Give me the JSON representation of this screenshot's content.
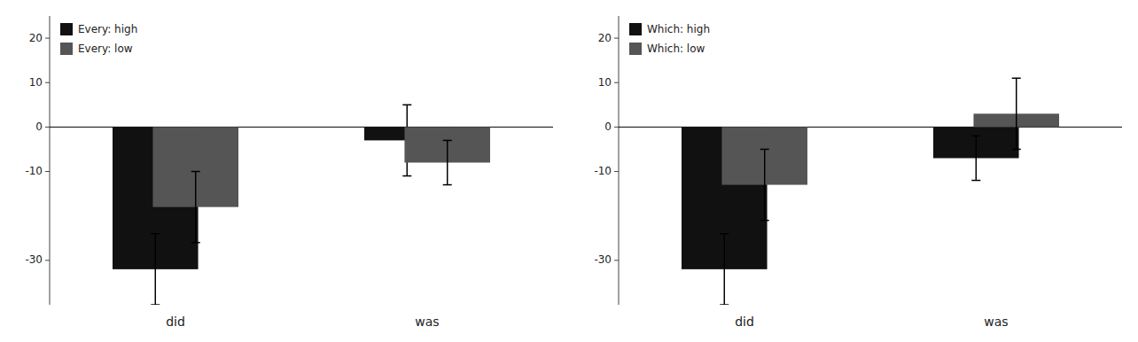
{
  "chart_data": [
    {
      "type": "bar",
      "categories": [
        "did",
        "was"
      ],
      "series": [
        {
          "name": "Every: high",
          "color": "#111111",
          "values": [
            -32,
            -3
          ],
          "errors": [
            8,
            8
          ]
        },
        {
          "name": "Every: low",
          "color": "#555555",
          "values": [
            -18,
            -8
          ],
          "errors": [
            8,
            5
          ]
        }
      ],
      "ylim": [
        -40,
        25
      ],
      "yticks": [
        -30,
        -10,
        0,
        10,
        20
      ],
      "grid": false,
      "legend": "upper left"
    },
    {
      "type": "bar",
      "categories": [
        "did",
        "was"
      ],
      "series": [
        {
          "name": "Which: high",
          "color": "#111111",
          "values": [
            -32,
            -7
          ],
          "errors": [
            8,
            5
          ]
        },
        {
          "name": "Which: low",
          "color": "#555555",
          "values": [
            -13,
            3
          ],
          "errors": [
            8,
            8
          ]
        }
      ],
      "ylim": [
        -40,
        25
      ],
      "yticks": [
        -30,
        -10,
        0,
        10,
        20
      ],
      "grid": false,
      "legend": "upper left"
    }
  ]
}
